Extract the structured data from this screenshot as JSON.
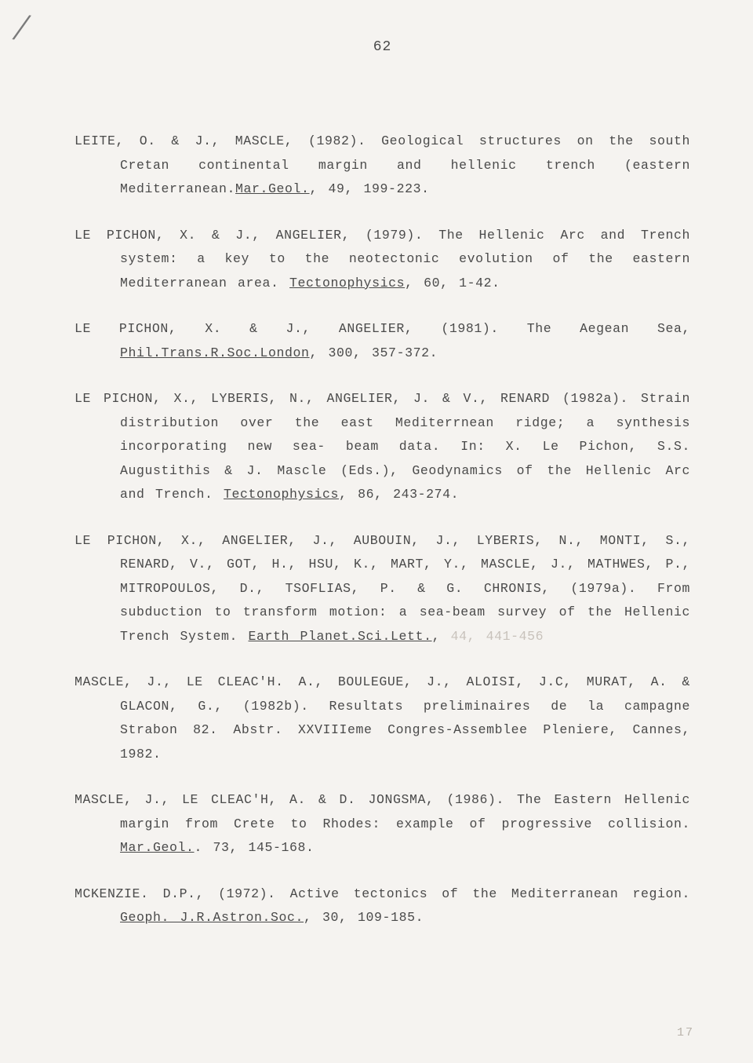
{
  "page_number": "62",
  "slash_mark": "/",
  "bottom_number": "17",
  "references": [
    {
      "text_parts": [
        {
          "t": "LEITE, O. & J., MASCLE,  (1982).  Geological  structures  on  the south  Cretan continental margin and hellenic trench (eastern Mediterranean.",
          "u": false
        },
        {
          "t": "Mar.Geol.",
          "u": true
        },
        {
          "t": ", 49, 199-223.",
          "u": false
        }
      ]
    },
    {
      "text_parts": [
        {
          "t": "LE PICHON, X. &  J.,  ANGELIER,  (1979).  The  Hellenic  Arc  and Trench  system:  a  key  to  the neotectonic evolution of the eastern Mediterranean area. ",
          "u": false
        },
        {
          "t": "Tectonophysics",
          "u": true
        },
        {
          "t": ", 60, 1-42.",
          "u": false
        }
      ]
    },
    {
      "text_parts": [
        {
          "t": "LE  PICHON,  X.  &  J.,  ANGELIER,  (1981).   The   Aegean   Sea, ",
          "u": false
        },
        {
          "t": "Phil.Trans.R.Soc.London",
          "u": true
        },
        {
          "t": ", 300, 357-372.",
          "u": false
        }
      ]
    },
    {
      "text_parts": [
        {
          "t": "LE  PICHON,  X.,  LYBERIS, N., ANGELIER, J. & V., RENARD (1982a). Strain distribution over the east Mediterrnean ridge; a  synthesis  incorporating  new  sea- beam data. In: X. Le Pichon, S.S.  Augustithis & J. Mascle (Eds.), Geodynamics of the Hellenic Arc and Trench. ",
          "u": false
        },
        {
          "t": "Tectonophysics",
          "u": true
        },
        {
          "t": ", 86, 243-274.",
          "u": false
        }
      ]
    },
    {
      "text_parts": [
        {
          "t": "LE  PICHON,  X.,  ANGELIER,  J., AUBOUIN, J., LYBERIS, N., MONTI, S., RENARD, V., GOT, H.,  HSU,  K.,  MART,  Y.,  MASCLE,  J., MATHWES,  P.,  MITROPOULOS,  D.,  TSOFLIAS,  P. & G. CHRONIS, (1979a).  From subduction to  transform  motion:  a  sea-beam survey of the Hellenic Trench System. ",
          "u": false
        },
        {
          "t": "Earth Planet.Sci.Lett.",
          "u": true
        },
        {
          "t": ", ",
          "u": false
        },
        {
          "t": "44, 441-456",
          "u": false,
          "faint": true
        }
      ]
    },
    {
      "text_parts": [
        {
          "t": "MASCLE, J., LE CLEAC'H. A., BOULEGUE, J., ALOISI, J.C, MURAT,  A. & GLACON, G., (1982b). Resultats preliminaires de la campagne Strabon  82.  Abstr.  XXVIIIeme  Congres-Assemblee  Pleniere, Cannes, 1982.",
          "u": false
        }
      ]
    },
    {
      "text_parts": [
        {
          "t": "MASCLE, J., LE CLEAC'H, A. & D. JONGSMA, (1986). The Eastern Hellenic margin from Crete to  Rhodes:  example  of  progressive collision. ",
          "u": false
        },
        {
          "t": "Mar.Geol.",
          "u": true
        },
        {
          "t": ". 73, 145-168.",
          "u": false
        }
      ]
    },
    {
      "text_parts": [
        {
          "t": "MCKENZIE.  D.P.,  (1972).  Active  tectonics of the Mediterranean region. ",
          "u": false
        },
        {
          "t": "Geoph. J.R.Astron.Soc.",
          "u": true
        },
        {
          "t": ", 30, 109-185.",
          "u": false
        }
      ]
    }
  ]
}
